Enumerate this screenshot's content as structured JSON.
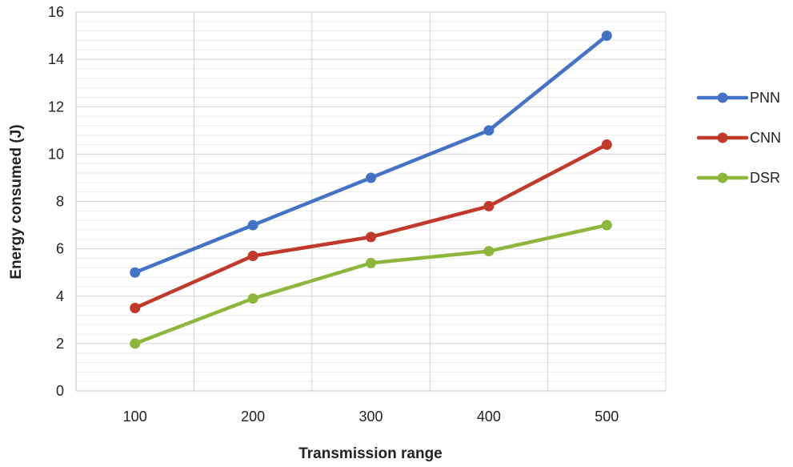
{
  "chart_data": {
    "type": "line",
    "title": "",
    "xlabel": "Transmission  range",
    "ylabel": "Energy consumed  (J)",
    "categories": [
      "100",
      "200",
      "300",
      "400",
      "500"
    ],
    "ylim": [
      0,
      16
    ],
    "yticks": [
      "0",
      "2",
      "4",
      "6",
      "8",
      "10",
      "12",
      "14",
      "16"
    ],
    "grid": true,
    "legend_position": "right",
    "series": [
      {
        "name": "PNN",
        "color": "#4472C4",
        "values": [
          5.0,
          7.0,
          9.0,
          11.0,
          15.0
        ]
      },
      {
        "name": "CNN",
        "color": "#C0392B",
        "values": [
          3.5,
          5.7,
          6.5,
          7.8,
          10.4
        ]
      },
      {
        "name": "DSR",
        "color": "#8DB63C",
        "values": [
          2.0,
          3.9,
          5.4,
          5.9,
          7.0
        ]
      }
    ]
  }
}
